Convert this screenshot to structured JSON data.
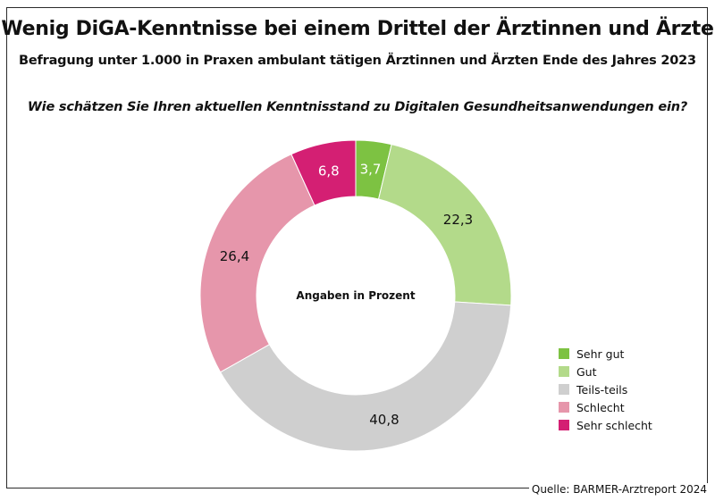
{
  "chart_data": {
    "type": "pie",
    "title": "Wenig DiGA-Kenntnisse bei einem Drittel der Ärztinnen und Ärzte",
    "subtitle": "Befragung unter 1.000 in Praxen ambulant tätigen Ärztinnen und Ärzten Ende des Jahres 2023",
    "question": "Wie schätzen Sie Ihren aktuellen Kenntnisstand zu Digitalen Gesundheitsanwendungen ein?",
    "center_label": "Angaben in Prozent",
    "donut": true,
    "legend_position": "bottom-right",
    "slices": [
      {
        "label": "Sehr gut",
        "value": 3.7,
        "display": "3,7",
        "color": "#7dc242",
        "text_color": "#ffffff"
      },
      {
        "label": "Gut",
        "value": 22.3,
        "display": "22,3",
        "color": "#b3da8a",
        "text_color": "#111111"
      },
      {
        "label": "Teils-teils",
        "value": 40.8,
        "display": "40,8",
        "color": "#cfcfcf",
        "text_color": "#111111"
      },
      {
        "label": "Schlecht",
        "value": 26.4,
        "display": "26,4",
        "color": "#e696ab",
        "text_color": "#111111"
      },
      {
        "label": "Sehr schlecht",
        "value": 6.8,
        "display": "6,8",
        "color": "#d41f73",
        "text_color": "#ffffff"
      }
    ]
  },
  "source": "Quelle: BARMER-Arztreport 2024"
}
